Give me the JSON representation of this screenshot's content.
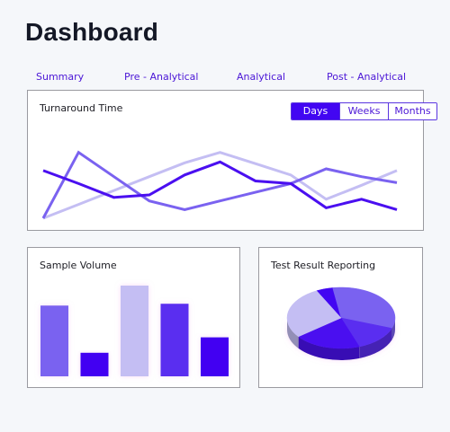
{
  "header": {
    "title": "Dashboard"
  },
  "nav": {
    "items": [
      {
        "label": "Summary"
      },
      {
        "label": "Pre - Analytical"
      },
      {
        "label": "Analytical"
      },
      {
        "label": "Post - Analytical"
      }
    ]
  },
  "turnaround": {
    "title": "Turnaround Time",
    "range_buttons": [
      "Days",
      "Weeks",
      "Months"
    ],
    "selected_range": "Days"
  },
  "sample_volume": {
    "title": "Sample Volume"
  },
  "test_results": {
    "title": "Test Result Reporting"
  },
  "colors": {
    "accent": "#4206f2",
    "nav_text": "#4b16d6",
    "title_text": "#141826",
    "card_border": "#9a9aa0",
    "series_dark": "#4a0ff0",
    "series_mid": "#7a62f0",
    "series_light": "#c4bef3"
  },
  "chart_data": [
    {
      "type": "line",
      "title": "Turnaround Time",
      "x": [
        0,
        1,
        2,
        3,
        4,
        5,
        6,
        7,
        8,
        9,
        10
      ],
      "series": [
        {
          "color": "#c4bef3",
          "values": [
            0,
            16,
            32,
            48,
            64,
            76,
            63,
            50,
            22,
            38,
            55
          ]
        },
        {
          "color": "#7a62f0",
          "values": [
            0,
            76,
            48,
            20,
            10,
            20,
            30,
            40,
            57,
            48,
            41
          ]
        },
        {
          "color": "#4a0ff0",
          "values": [
            55,
            40,
            24,
            27,
            50,
            65,
            43,
            40,
            12,
            22,
            10
          ]
        }
      ],
      "ylim": [
        0,
        85
      ]
    },
    {
      "type": "bar",
      "title": "Sample Volume",
      "categories": [
        "",
        "",
        "",
        "",
        ""
      ],
      "colors": [
        "#7a62f0",
        "#4206f2",
        "#c4bef3",
        "#5a2ef0",
        "#4206f2"
      ],
      "values": [
        78,
        26,
        100,
        80,
        43
      ],
      "ylim": [
        0,
        100
      ]
    },
    {
      "type": "pie",
      "title": "Test Result Reporting",
      "labels": [
        "",
        "",
        "",
        "",
        ""
      ],
      "colors": [
        "#4206f2",
        "#7a62f0",
        "#5a2ef0",
        "#4a0ff0",
        "#c4bef3"
      ],
      "values": [
        5,
        33,
        14,
        20,
        28
      ]
    }
  ]
}
